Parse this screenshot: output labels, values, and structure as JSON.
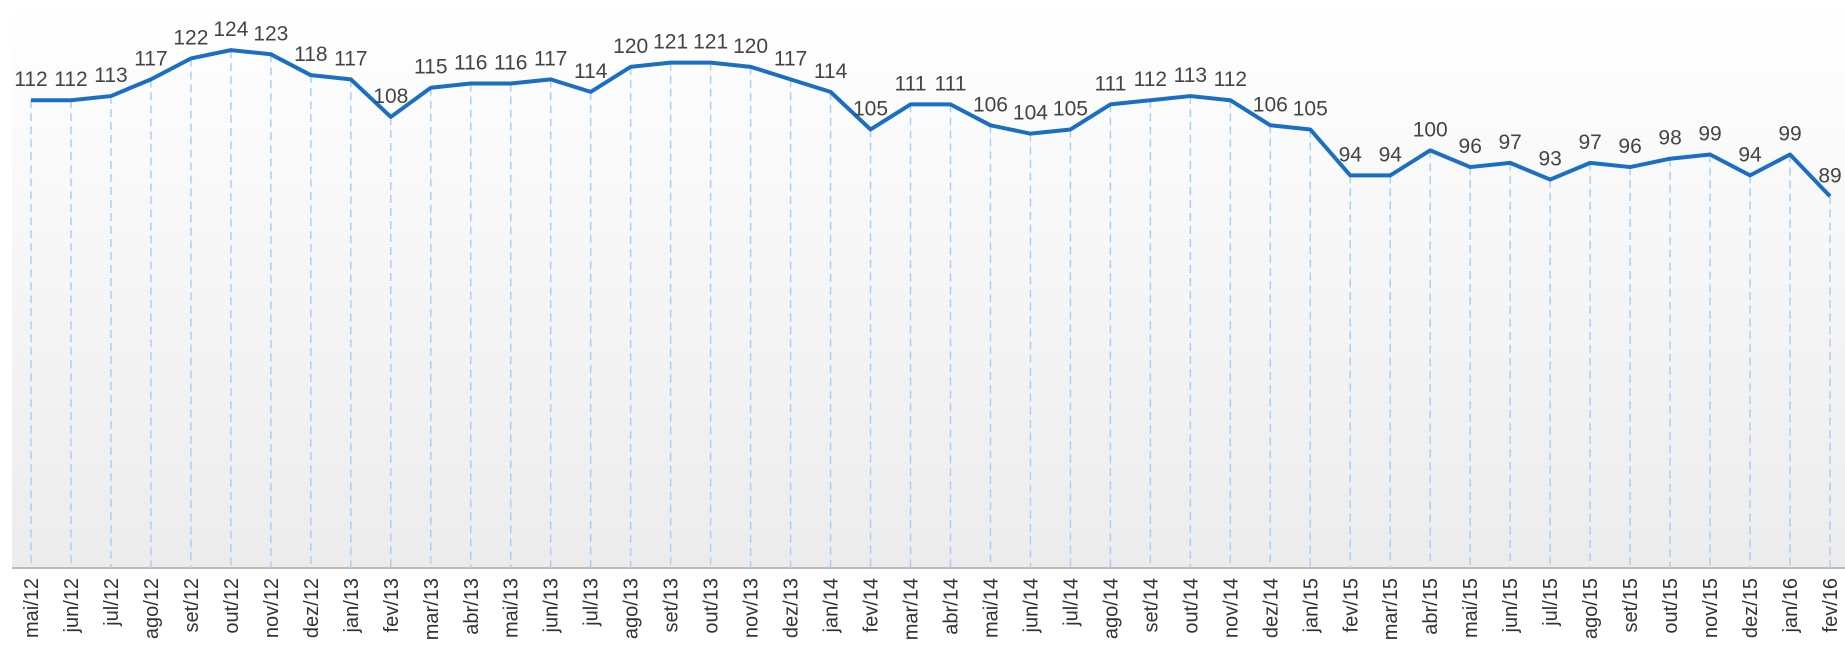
{
  "chart_data": {
    "type": "line",
    "categories": [
      "mai/12",
      "jun/12",
      "jul/12",
      "ago/12",
      "set/12",
      "out/12",
      "nov/12",
      "dez/12",
      "jan/13",
      "fev/13",
      "mar/13",
      "abr/13",
      "mai/13",
      "jun/13",
      "jul/13",
      "ago/13",
      "set/13",
      "out/13",
      "nov/13",
      "dez/13",
      "jan/14",
      "fev/14",
      "mar/14",
      "abr/14",
      "mai/14",
      "jun/14",
      "jul/14",
      "ago/14",
      "set/14",
      "out/14",
      "nov/14",
      "dez/14",
      "jan/15",
      "fev/15",
      "mar/15",
      "abr/15",
      "mai/15",
      "jun/15",
      "jul/15",
      "ago/15",
      "set/15",
      "out/15",
      "nov/15",
      "dez/15",
      "jan/16",
      "fev/16"
    ],
    "values": [
      112,
      112,
      113,
      117,
      122,
      124,
      123,
      118,
      117,
      108,
      115,
      116,
      116,
      117,
      114,
      120,
      121,
      121,
      120,
      117,
      114,
      105,
      111,
      111,
      106,
      104,
      105,
      111,
      112,
      113,
      112,
      106,
      105,
      94,
      94,
      100,
      96,
      97,
      93,
      97,
      96,
      98,
      99,
      94,
      99,
      89
    ],
    "color": "#1a6fc4",
    "ylim": [
      0,
      136
    ]
  }
}
